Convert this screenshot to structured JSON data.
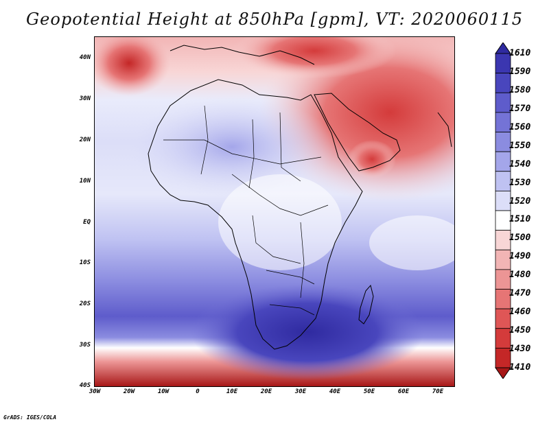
{
  "title": "Geopotential Height at 850hPa [gpm], VT: 2020060115",
  "credit": "GrADS: IGES/COLA",
  "axes": {
    "y_ticks": [
      "40N",
      "30N",
      "20N",
      "10N",
      "EQ",
      "10S",
      "20S",
      "30S",
      "40S"
    ],
    "x_ticks": [
      "30W",
      "20W",
      "10W",
      "0",
      "10E",
      "20E",
      "30E",
      "40E",
      "50E",
      "60E",
      "70E"
    ]
  },
  "colorbar": {
    "labels": [
      "1610",
      "1590",
      "1580",
      "1570",
      "1560",
      "1550",
      "1540",
      "1530",
      "1520",
      "1510",
      "1500",
      "1490",
      "1480",
      "1470",
      "1460",
      "1450",
      "1430",
      "1410"
    ],
    "colors": [
      "#2f2aa0",
      "#3b36b0",
      "#4946bd",
      "#5e5ccb",
      "#7473d6",
      "#8b8ce0",
      "#a4a6ea",
      "#bfc2f2",
      "#dcdef8",
      "#ffffff",
      "#f8d6d6",
      "#f2b5b5",
      "#ec9595",
      "#e67575",
      "#df5656",
      "#d43b3b",
      "#c42727",
      "#a71717"
    ]
  },
  "colors": {
    "high": "#2f2aa0",
    "mid": "#ffffff",
    "low": "#b31d1d"
  }
}
